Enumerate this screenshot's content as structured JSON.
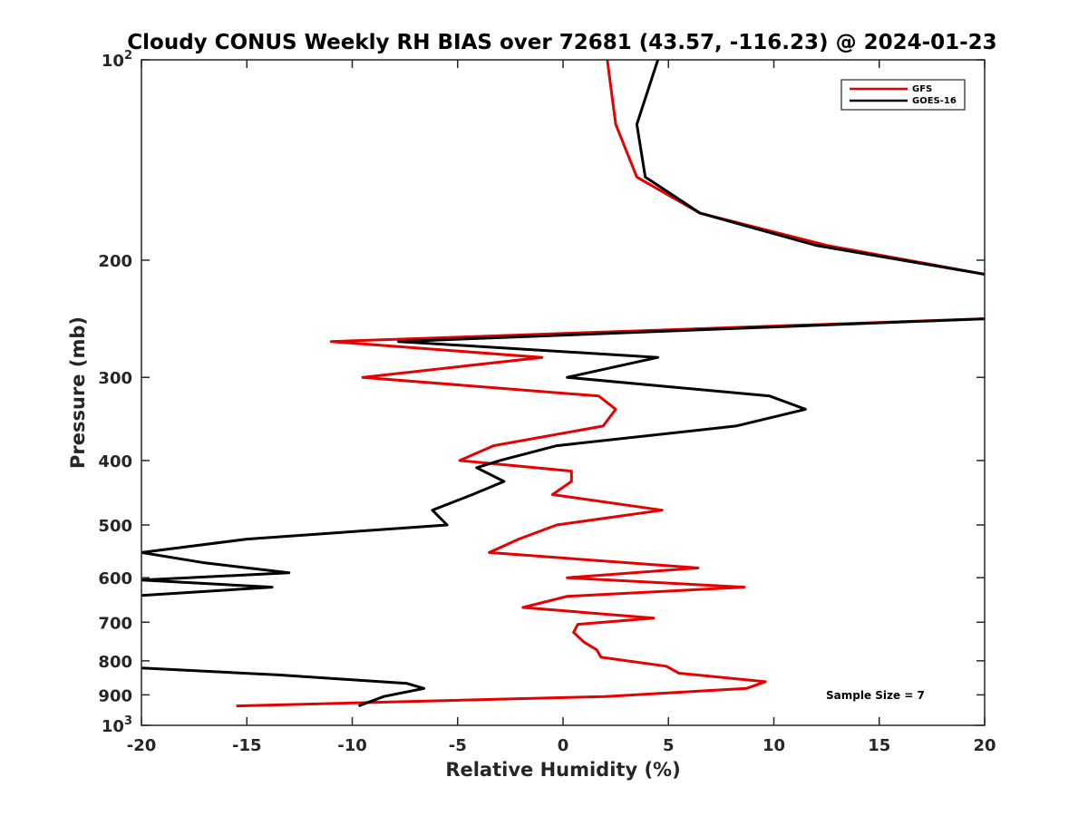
{
  "chart_data": {
    "type": "line",
    "title": "Cloudy CONUS Weekly RH BIAS over 72681 (43.57, -116.23) @ 2024-01-23",
    "xlabel": "Relative Humidity (%)",
    "ylabel": "Pressure (mb)",
    "xlim": [
      -20,
      20
    ],
    "ylim": [
      100,
      1000
    ],
    "y_scale": "log",
    "y_reversed": true,
    "grid": false,
    "legend_position": "top-right",
    "x_ticks": [
      -20,
      -15,
      -10,
      -5,
      0,
      5,
      10,
      15,
      20
    ],
    "x_tick_labels": [
      "-20",
      "-15",
      "-10",
      "-5",
      "0",
      "5",
      "10",
      "15",
      "20"
    ],
    "y_ticks": [
      100,
      200,
      300,
      400,
      500,
      600,
      700,
      800,
      900,
      1000
    ],
    "y_tick_labels": [
      {
        "base": "10",
        "exp": "2"
      },
      {
        "base": "200",
        "exp": ""
      },
      {
        "base": "300",
        "exp": ""
      },
      {
        "base": "400",
        "exp": ""
      },
      {
        "base": "500",
        "exp": ""
      },
      {
        "base": "600",
        "exp": ""
      },
      {
        "base": "700",
        "exp": ""
      },
      {
        "base": "800",
        "exp": ""
      },
      {
        "base": "900",
        "exp": ""
      },
      {
        "base": "10",
        "exp": "3"
      }
    ],
    "annotation": "Sample Size = 7",
    "series": [
      {
        "name": "GFS",
        "color": "#e60000",
        "x": [
          2.1,
          2.5,
          3.5,
          6.5,
          12.5,
          20,
          null,
          20,
          -11,
          -1,
          -9.5,
          1.7,
          2.5,
          1.9,
          -3.3,
          -4.9,
          0.4,
          0.4,
          -0.5,
          4.7,
          -0.3,
          -2.1,
          -3.5,
          6.4,
          0.2,
          8.6,
          0.2,
          -1.9,
          4.3,
          0.7,
          0.5,
          1.0,
          1.6,
          1.8,
          4.9,
          5.5,
          9.6,
          8.7,
          2.0,
          -15.5
        ],
        "y": [
          100,
          125,
          150,
          170,
          190,
          210,
          null,
          245,
          265,
          280,
          300,
          320,
          335,
          355,
          380,
          400,
          415,
          430,
          450,
          475,
          500,
          525,
          550,
          580,
          600,
          620,
          640,
          665,
          690,
          705,
          725,
          750,
          770,
          790,
          815,
          835,
          860,
          880,
          905,
          935
        ]
      },
      {
        "name": "GOES-16",
        "color": "#000000",
        "x": [
          4.5,
          3.5,
          3.9,
          6.5,
          12.0,
          20,
          null,
          20,
          -7.8,
          4.5,
          0.2,
          9.8,
          11.5,
          8.2,
          -0.3,
          -3.0,
          -4.1,
          -2.8,
          -4.3,
          -6.2,
          -5.5,
          -15.0,
          -20,
          -17,
          -13.0,
          -20,
          -13.8,
          -20,
          null,
          -20,
          -13.5,
          -7.4,
          -6.6,
          -8.5,
          -9.7
        ],
        "y": [
          100,
          125,
          150,
          170,
          190,
          210,
          null,
          245,
          265,
          280,
          300,
          320,
          335,
          355,
          380,
          400,
          410,
          430,
          450,
          475,
          500,
          525,
          550,
          570,
          590,
          605,
          620,
          638,
          null,
          820,
          840,
          865,
          880,
          905,
          935
        ]
      }
    ]
  }
}
